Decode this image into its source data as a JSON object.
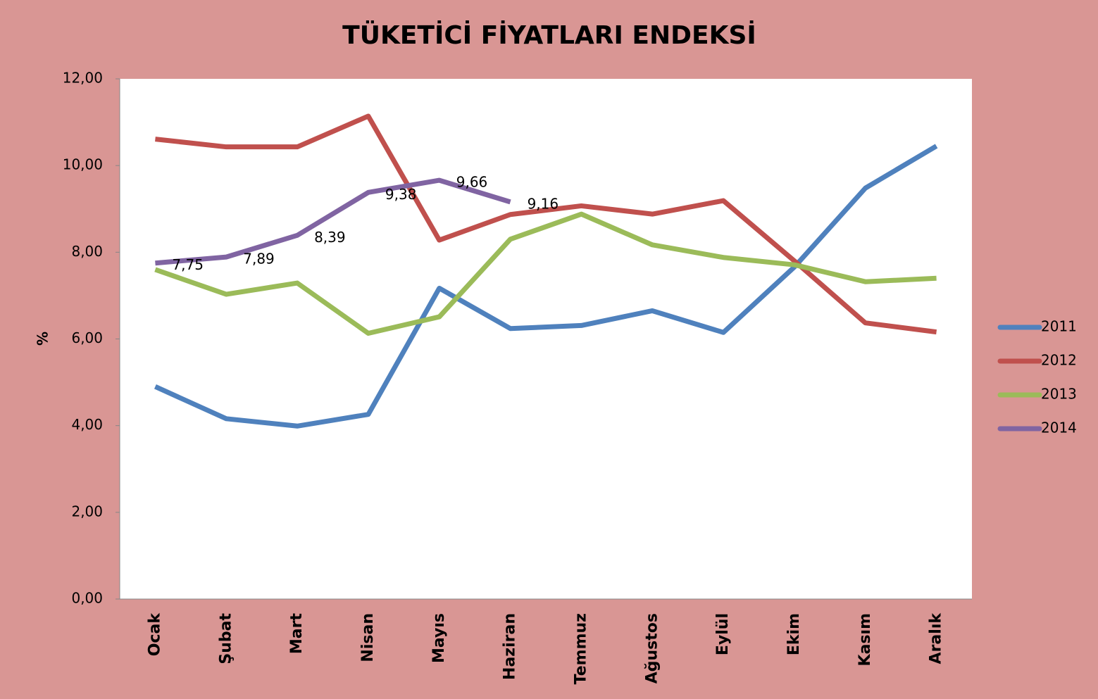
{
  "chart_data": {
    "type": "line",
    "title": "TÜKETİCİ FİYATLARI ENDEKSİ",
    "y_label": "%",
    "categories": [
      "Ocak",
      "Şubat",
      "Mart",
      "Nisan",
      "Mayıs",
      "Haziran",
      "Temmuz",
      "Ağustos",
      "Eylül",
      "Ekim",
      "Kasım",
      "Aralık"
    ],
    "series": [
      {
        "name": "2011",
        "color": "#4f81bd",
        "values": [
          4.9,
          4.16,
          3.99,
          4.26,
          7.17,
          6.24,
          6.31,
          6.65,
          6.15,
          7.66,
          9.48,
          10.45
        ]
      },
      {
        "name": "2012",
        "color": "#c0504d",
        "values": [
          10.61,
          10.43,
          10.43,
          11.14,
          8.28,
          8.87,
          9.07,
          8.88,
          9.19,
          7.8,
          6.37,
          6.16
        ]
      },
      {
        "name": "2013",
        "color": "#9bbb59",
        "values": [
          7.6,
          7.03,
          7.29,
          6.13,
          6.51,
          8.3,
          8.88,
          8.17,
          7.88,
          7.71,
          7.32,
          7.4
        ]
      },
      {
        "name": "2014",
        "color": "#8064a2",
        "values": [
          7.75,
          7.89,
          8.39,
          9.38,
          9.66,
          9.16,
          null,
          null,
          null,
          null,
          null,
          null
        ],
        "value_labels": [
          "7,75",
          "7,89",
          "8,39",
          "9,38",
          "9,66",
          "9,16",
          null,
          null,
          null,
          null,
          null,
          null
        ]
      }
    ],
    "ylim": [
      0,
      12
    ],
    "yticks": [
      {
        "value": 0,
        "label": "0,00"
      },
      {
        "value": 2,
        "label": "2,00"
      },
      {
        "value": 4,
        "label": "4,00"
      },
      {
        "value": 6,
        "label": "6,00"
      },
      {
        "value": 8,
        "label": "8,00"
      },
      {
        "value": 10,
        "label": "10,00"
      },
      {
        "value": 12,
        "label": "12,00"
      }
    ],
    "legend": "right"
  }
}
